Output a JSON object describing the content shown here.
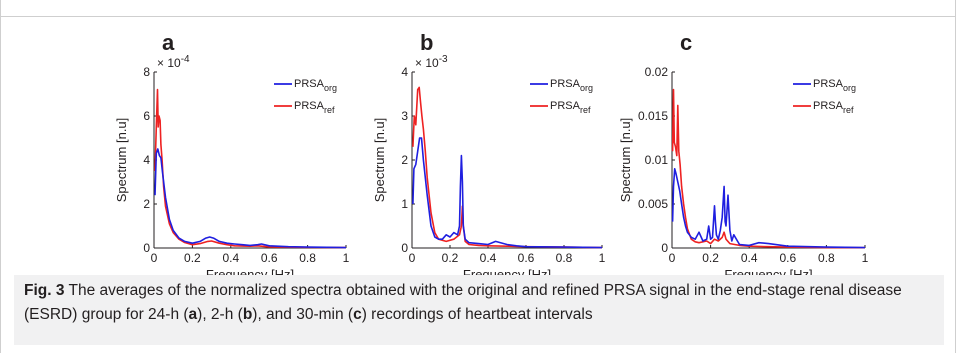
{
  "figure": {
    "caption_label": "Fig. 3",
    "caption_parts": [
      {
        "t": "The averages of the normalized spectra obtained with the original and refined PRSA signal in the end-stage renal disease (ESRD) group for 24-h (",
        "b": false
      },
      {
        "t": "a",
        "b": true
      },
      {
        "t": "), 2-h (",
        "b": false
      },
      {
        "t": "b",
        "b": true
      },
      {
        "t": "), and 30-min (",
        "b": false
      },
      {
        "t": "c",
        "b": true
      },
      {
        "t": ") recordings of heartbeat intervals",
        "b": false
      }
    ]
  },
  "colors": {
    "org": "#1f1fe0",
    "ref": "#ee2222",
    "axis": "#231f20"
  },
  "chart_data": [
    {
      "panel_label": "a",
      "type": "line",
      "xlabel": "Frequency [Hz]",
      "ylabel": "Spectrum [n.u]",
      "xlim": [
        0,
        1
      ],
      "ylim": [
        0,
        8
      ],
      "xticks": [
        "0",
        "0.2",
        "0.4",
        "0.6",
        "0.8",
        "1"
      ],
      "yticks": [
        "0",
        "2",
        "4",
        "6",
        "8"
      ],
      "y_multiplier": {
        "base": "× 10",
        "exp": "-4"
      },
      "legend": [
        {
          "name": "PRSA",
          "sub": "org",
          "key": "org"
        },
        {
          "name": "PRSA",
          "sub": "ref",
          "key": "ref"
        }
      ],
      "series": [
        {
          "name": "PRSA_org",
          "color_key": "org",
          "x": [
            0.005,
            0.012,
            0.02,
            0.028,
            0.036,
            0.045,
            0.06,
            0.08,
            0.1,
            0.13,
            0.16,
            0.2,
            0.24,
            0.27,
            0.29,
            0.31,
            0.34,
            0.38,
            0.42,
            0.46,
            0.5,
            0.54,
            0.56,
            0.6,
            0.7,
            0.8,
            1.0
          ],
          "y": [
            2.4,
            4.3,
            4.5,
            4.2,
            4.1,
            3.4,
            2.3,
            1.3,
            0.8,
            0.45,
            0.3,
            0.22,
            0.3,
            0.45,
            0.5,
            0.45,
            0.3,
            0.22,
            0.18,
            0.15,
            0.12,
            0.15,
            0.18,
            0.1,
            0.06,
            0.04,
            0.02
          ]
        },
        {
          "name": "PRSA_ref",
          "color_key": "ref",
          "x": [
            0.005,
            0.012,
            0.018,
            0.022,
            0.026,
            0.032,
            0.036,
            0.042,
            0.05,
            0.06,
            0.08,
            0.1,
            0.13,
            0.16,
            0.2,
            0.24,
            0.28,
            0.3,
            0.34,
            0.38,
            0.42,
            0.5,
            0.54,
            0.6,
            0.8,
            1.0
          ],
          "y": [
            3.5,
            5.5,
            7.2,
            5.5,
            6.0,
            5.8,
            4.7,
            4.0,
            2.8,
            1.9,
            1.1,
            0.7,
            0.4,
            0.25,
            0.15,
            0.2,
            0.3,
            0.32,
            0.22,
            0.15,
            0.1,
            0.08,
            0.1,
            0.05,
            0.03,
            0.02
          ]
        }
      ]
    },
    {
      "panel_label": "b",
      "type": "line",
      "xlabel": "Frequency [Hz]",
      "ylabel": "Spectrum [n.u]",
      "xlim": [
        0,
        1
      ],
      "ylim": [
        0,
        4
      ],
      "xticks": [
        "0",
        "0.2",
        "0.4",
        "0.6",
        "0.8",
        "1"
      ],
      "yticks": [
        "0",
        "1",
        "2",
        "3",
        "4"
      ],
      "y_multiplier": {
        "base": "× 10",
        "exp": "-3"
      },
      "legend": [
        {
          "name": "PRSA",
          "sub": "org",
          "key": "org"
        },
        {
          "name": "PRSA",
          "sub": "ref",
          "key": "ref"
        }
      ],
      "series": [
        {
          "name": "PRSA_org",
          "color_key": "org",
          "x": [
            0.005,
            0.01,
            0.02,
            0.03,
            0.04,
            0.05,
            0.06,
            0.08,
            0.1,
            0.12,
            0.14,
            0.16,
            0.18,
            0.2,
            0.22,
            0.24,
            0.25,
            0.255,
            0.26,
            0.265,
            0.27,
            0.28,
            0.3,
            0.35,
            0.4,
            0.44,
            0.5,
            0.55,
            0.6,
            0.8,
            1.0
          ],
          "y": [
            1.0,
            1.8,
            1.9,
            2.2,
            2.5,
            2.5,
            2.0,
            1.2,
            0.5,
            0.25,
            0.2,
            0.2,
            0.3,
            0.25,
            0.35,
            0.3,
            0.5,
            1.4,
            2.1,
            1.5,
            0.5,
            0.2,
            0.12,
            0.1,
            0.08,
            0.15,
            0.08,
            0.05,
            0.03,
            0.02,
            0.01
          ]
        },
        {
          "name": "PRSA_ref",
          "color_key": "ref",
          "x": [
            0.005,
            0.012,
            0.02,
            0.03,
            0.038,
            0.045,
            0.052,
            0.06,
            0.07,
            0.08,
            0.1,
            0.12,
            0.14,
            0.18,
            0.22,
            0.25,
            0.26,
            0.265,
            0.27,
            0.28,
            0.3,
            0.35,
            0.4,
            0.5,
            0.6,
            0.8,
            1.0
          ],
          "y": [
            2.3,
            3.0,
            2.8,
            3.6,
            3.65,
            3.3,
            3.0,
            2.7,
            2.2,
            1.6,
            0.8,
            0.35,
            0.2,
            0.15,
            0.2,
            0.3,
            0.5,
            0.95,
            0.5,
            0.15,
            0.08,
            0.06,
            0.05,
            0.04,
            0.03,
            0.02,
            0.01
          ]
        }
      ]
    },
    {
      "panel_label": "c",
      "type": "line",
      "xlabel": "Frequency [Hz]",
      "ylabel": "Spectrum [n.u]",
      "xlim": [
        0,
        1
      ],
      "ylim": [
        0,
        0.02
      ],
      "xticks": [
        "0",
        "0.2",
        "0.4",
        "0.6",
        "0.8",
        "1"
      ],
      "yticks": [
        "0",
        "0.005",
        "0.01",
        "0.015",
        "0.02"
      ],
      "y_multiplier": null,
      "legend": [
        {
          "name": "PRSA",
          "sub": "org",
          "key": "org"
        },
        {
          "name": "PRSA",
          "sub": "ref",
          "key": "ref"
        }
      ],
      "series": [
        {
          "name": "PRSA_org",
          "color_key": "org",
          "x": [
            0.003,
            0.008,
            0.014,
            0.02,
            0.03,
            0.04,
            0.05,
            0.06,
            0.07,
            0.08,
            0.09,
            0.1,
            0.12,
            0.14,
            0.16,
            0.18,
            0.19,
            0.2,
            0.21,
            0.22,
            0.225,
            0.23,
            0.24,
            0.25,
            0.26,
            0.27,
            0.275,
            0.28,
            0.29,
            0.3,
            0.31,
            0.32,
            0.35,
            0.4,
            0.45,
            0.5,
            0.6,
            0.8,
            1.0
          ],
          "y": [
            0.003,
            0.007,
            0.009,
            0.0085,
            0.0075,
            0.0065,
            0.005,
            0.0035,
            0.0025,
            0.0018,
            0.0015,
            0.0012,
            0.001,
            0.0018,
            0.0008,
            0.001,
            0.0025,
            0.001,
            0.0012,
            0.0048,
            0.003,
            0.0015,
            0.001,
            0.002,
            0.0035,
            0.007,
            0.003,
            0.0025,
            0.006,
            0.002,
            0.0008,
            0.0015,
            0.0004,
            0.0003,
            0.0006,
            0.0005,
            0.0002,
            0.0001,
            5e-05
          ]
        },
        {
          "name": "PRSA_ref",
          "color_key": "ref",
          "x": [
            0.003,
            0.008,
            0.012,
            0.018,
            0.025,
            0.03,
            0.035,
            0.042,
            0.05,
            0.06,
            0.07,
            0.08,
            0.1,
            0.12,
            0.14,
            0.16,
            0.18,
            0.2,
            0.22,
            0.24,
            0.26,
            0.27,
            0.28,
            0.3,
            0.35,
            0.4,
            0.5,
            0.6,
            0.8,
            1.0
          ],
          "y": [
            0.011,
            0.018,
            0.012,
            0.0115,
            0.0105,
            0.0162,
            0.011,
            0.0095,
            0.007,
            0.005,
            0.0035,
            0.0022,
            0.001,
            0.0007,
            0.0006,
            0.0007,
            0.0008,
            0.0005,
            0.001,
            0.0008,
            0.0012,
            0.0018,
            0.001,
            0.0005,
            0.0003,
            0.0002,
            0.00015,
            0.0001,
            5e-05,
            3e-05
          ]
        }
      ]
    }
  ]
}
